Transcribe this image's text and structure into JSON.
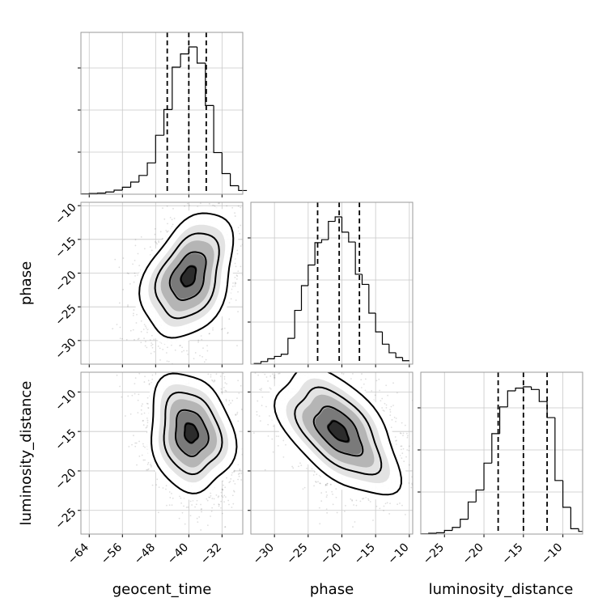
{
  "chart_data": {
    "type": "corner",
    "parameters": [
      "geocent_time",
      "phase",
      "luminosity_distance"
    ],
    "axes": {
      "geocent_time": {
        "lim": [
          -66,
          -27
        ],
        "ticks": [
          -64,
          -56,
          -48,
          -40,
          -32
        ],
        "tick_labels": [
          "−64",
          "−56",
          "−48",
          "−40",
          "−32"
        ]
      },
      "phase": {
        "lim": [
          -33.5,
          -9.5
        ],
        "ticks": [
          -30,
          -25,
          -20,
          -15,
          -10
        ],
        "tick_labels": [
          "−30",
          "−25",
          "−20",
          "−15",
          "−10"
        ]
      },
      "luminosity_distance": {
        "lim": [
          -28,
          -7.5
        ],
        "ticks": [
          -25,
          -20,
          -15,
          -10
        ],
        "tick_labels": [
          "−25",
          "−20",
          "−15",
          "−10"
        ]
      }
    },
    "marginals": [
      {
        "parameter": "geocent_time",
        "quantiles": [
          -45.2,
          -40.0,
          -35.8
        ],
        "bin_edges": [
          -66,
          -64,
          -62,
          -60,
          -58,
          -56,
          -54,
          -52,
          -50,
          -48,
          -46,
          -44,
          -42,
          -40,
          -38,
          -36,
          -34,
          -32,
          -30,
          -28,
          -26
        ],
        "counts": [
          1,
          2,
          3,
          6,
          11,
          19,
          33,
          51,
          85,
          160,
          230,
          345,
          381,
          400,
          356,
          241,
          113,
          56,
          23,
          10
        ]
      },
      {
        "parameter": "phase",
        "quantiles": [
          -23.6,
          -20.4,
          -17.4
        ],
        "bin_edges": [
          -33,
          -32,
          -31,
          -30,
          -29,
          -28,
          -27,
          -26,
          -25,
          -24,
          -23,
          -22,
          -21,
          -20,
          -19,
          -18,
          -17,
          -16,
          -15,
          -14,
          -13,
          -12,
          -11,
          -10
        ],
        "counts": [
          3,
          12,
          25,
          36,
          46,
          120,
          250,
          365,
          461,
          565,
          579,
          664,
          685,
          614,
          568,
          418,
          371,
          237,
          150,
          93,
          53,
          31,
          16
        ]
      },
      {
        "parameter": "luminosity_distance",
        "quantiles": [
          -18.2,
          -15.0,
          -12.0
        ],
        "bin_edges": [
          -28,
          -27,
          -26,
          -25,
          -24,
          -23,
          -22,
          -21,
          -20,
          -19,
          -18,
          -17,
          -16,
          -15,
          -14,
          -13,
          -12,
          -11,
          -10,
          -9,
          -8,
          -7.5
        ],
        "counts": [
          2,
          6,
          10,
          27,
          50,
          111,
          240,
          329,
          530,
          750,
          950,
          1070,
          1090,
          1100,
          1080,
          990,
          870,
          400,
          200,
          40,
          20
        ]
      }
    ],
    "joint": [
      {
        "x": "geocent_time",
        "y": "phase",
        "mean": [
          -40.0,
          -20.5
        ],
        "sd": [
          5.0,
          4.2
        ],
        "corr": 0.35
      },
      {
        "x": "geocent_time",
        "y": "luminosity_distance",
        "mean": [
          -39.5,
          -15.2
        ],
        "sd": [
          4.6,
          3.4
        ],
        "corr": -0.15
      },
      {
        "x": "phase",
        "y": "luminosity_distance",
        "mean": [
          -20.5,
          -15.0
        ],
        "sd": [
          4.1,
          3.6
        ],
        "corr": -0.55
      }
    ]
  }
}
